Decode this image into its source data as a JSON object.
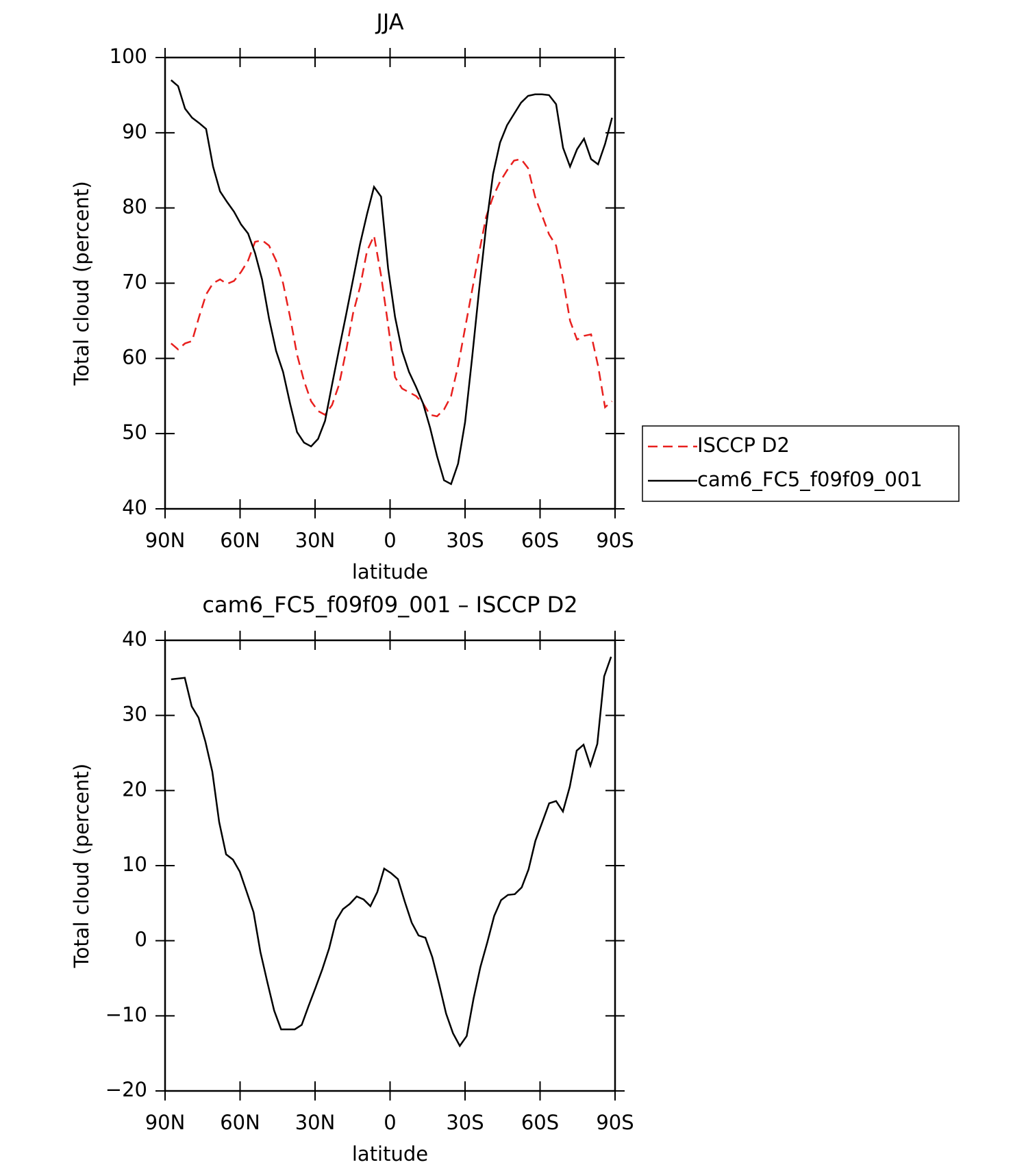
{
  "chart_data": [
    {
      "type": "line",
      "title": "JJA",
      "xlabel": "latitude",
      "ylabel": "Total cloud (percent)",
      "x": [
        87.6,
        84.8,
        82,
        79.2,
        76.4,
        73.6,
        70.8,
        68,
        65.2,
        62.4,
        59.6,
        56.8,
        54,
        51.2,
        48.4,
        45.6,
        42.8,
        40,
        37.2,
        34.4,
        31.6,
        28.8,
        26,
        23.2,
        20.4,
        17.6,
        14.8,
        12,
        9.2,
        6.4,
        3.6,
        0.8,
        -2,
        -4.8,
        -7.6,
        -10.4,
        -13.2,
        -16,
        -18.8,
        -21.6,
        -24.4,
        -27.2,
        -30,
        -32.8,
        -35.6,
        -38.4,
        -41.2,
        -44,
        -46.8,
        -49.6,
        -52.4,
        -55.2,
        -58,
        -60.8,
        -63.6,
        -66.4,
        -69.2,
        -72,
        -74.8,
        -77.6,
        -80.4,
        -83.2,
        -86,
        -88.8
      ],
      "series": [
        {
          "name": "ISCCP D2",
          "color": "#e8201e",
          "style": "dashed",
          "values": [
            62,
            61.2,
            62,
            62.3,
            65.5,
            68.5,
            70,
            70.5,
            69.9,
            70.3,
            71.5,
            73,
            75.5,
            75.7,
            75,
            73,
            70,
            65.5,
            60.5,
            57,
            54.3,
            53,
            52.5,
            53.8,
            56.5,
            61,
            66,
            69.5,
            74.3,
            76.3,
            71,
            64.5,
            57.5,
            56,
            55.5,
            55,
            54,
            52.5,
            52.3,
            53.2,
            55,
            59,
            64,
            69,
            74,
            78.8,
            81.5,
            83.5,
            85,
            86.3,
            86.5,
            85.3,
            81.5,
            79,
            76.5,
            75,
            70.5,
            65,
            62.5,
            63,
            63.2,
            59,
            53.5,
            54.3
          ]
        },
        {
          "name": "cam6_FC5_f09f09_001",
          "color": "#000000",
          "style": "solid",
          "values": [
            97,
            96.2,
            93.2,
            92,
            91.3,
            90.5,
            85.5,
            82.2,
            80.8,
            79.5,
            77.8,
            76.6,
            74,
            70.5,
            65.3,
            61,
            58.2,
            54,
            50.2,
            48.8,
            48.3,
            49.3,
            51.7,
            56.5,
            61.2,
            65.8,
            70.5,
            75.2,
            79.2,
            82.8,
            81.5,
            72,
            65.5,
            61,
            58.2,
            56.2,
            54,
            50.8,
            47,
            43.8,
            43.3,
            46,
            51.5,
            60,
            69,
            77.5,
            84.5,
            88.7,
            91,
            92.5,
            94,
            94.9,
            95.1,
            95.1,
            95,
            93.8,
            88,
            85.5,
            87.8,
            89.2,
            86.5,
            85.8,
            88.5,
            92
          ]
        }
      ],
      "xlim": [
        90,
        -90
      ],
      "xticks": [
        {
          "value": 90,
          "label": "90N"
        },
        {
          "value": 60,
          "label": "60N"
        },
        {
          "value": 30,
          "label": "30N"
        },
        0,
        {
          "value": -30,
          "label": "30S"
        },
        {
          "value": -60,
          "label": "60S"
        },
        {
          "value": -90,
          "label": "90S"
        }
      ],
      "ylim": [
        40,
        100
      ],
      "yticks": [
        40,
        50,
        60,
        70,
        80,
        90,
        100
      ],
      "legend": "right"
    },
    {
      "type": "line",
      "title": "cam6_FC5_f09f09_001 – ISCCP D2",
      "xlabel": "latitude",
      "ylabel": "Total cloud (percent)",
      "x": [
        87.6,
        84.85,
        82.1,
        79.35,
        76.6,
        73.85,
        71.1,
        68.35,
        65.6,
        62.85,
        60.1,
        57.35,
        54.6,
        51.85,
        49.1,
        46.35,
        43.6,
        40.85,
        38.1,
        35.35,
        32.6,
        29.85,
        27.1,
        24.35,
        21.6,
        18.85,
        16.1,
        13.35,
        10.6,
        7.85,
        5.1,
        2.35,
        -0.4,
        -3.15,
        -5.9,
        -8.65,
        -11.4,
        -14.15,
        -16.9,
        -19.65,
        -22.4,
        -25.15,
        -27.9,
        -30.65,
        -33.4,
        -36.15,
        -38.9,
        -41.65,
        -44.4,
        -47.15,
        -49.9,
        -52.65,
        -55.4,
        -58.15,
        -60.9,
        -63.65,
        -66.4,
        -69.15,
        -71.9,
        -74.65,
        -77.4,
        -80.15,
        -82.9,
        -85.65,
        -88.4
      ],
      "series": [
        {
          "color": "#000000",
          "style": "solid",
          "values": [
            34.8,
            34.9,
            35,
            31.2,
            29.7,
            26.5,
            22.5,
            15.8,
            11.5,
            10.8,
            9.2,
            6.5,
            3.8,
            -1.5,
            -5.5,
            -9.3,
            -11.8,
            -11.8,
            -11.8,
            -11.2,
            -8.7,
            -6.3,
            -3.8,
            -1,
            2.7,
            4.2,
            4.9,
            5.9,
            5.5,
            4.6,
            6.5,
            9.6,
            9,
            8.2,
            5.2,
            2.4,
            0.7,
            0.4,
            -2.2,
            -5.8,
            -9.7,
            -12.3,
            -14,
            -12.7,
            -7.7,
            -3.5,
            -0.2,
            3.3,
            5.4,
            6.1,
            6.2,
            7.1,
            9.5,
            13.3,
            15.8,
            18.3,
            18.6,
            17.2,
            20.5,
            25.3,
            26.1,
            23.3,
            26.2,
            35.2,
            37.8
          ]
        }
      ],
      "xlim": [
        90,
        -90
      ],
      "xticks": [
        {
          "value": 90,
          "label": "90N"
        },
        {
          "value": 60,
          "label": "60N"
        },
        {
          "value": 30,
          "label": "30N"
        },
        0,
        {
          "value": -30,
          "label": "30S"
        },
        {
          "value": -60,
          "label": "60S"
        },
        {
          "value": -90,
          "label": "90S"
        }
      ],
      "ylim": [
        -20,
        40
      ],
      "yticks": [
        {
          "value": -20,
          "label": "−20"
        },
        {
          "value": -10,
          "label": "−10"
        },
        0,
        10,
        20,
        30,
        40
      ]
    }
  ]
}
